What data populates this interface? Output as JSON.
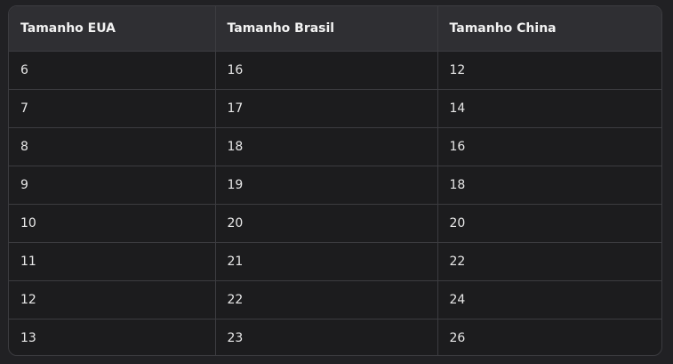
{
  "table": {
    "header": [
      "Tamanho EUA",
      "Tamanho Brasil",
      "Tamanho China"
    ],
    "rows": [
      [
        6,
        16,
        12
      ],
      [
        7,
        17,
        14
      ],
      [
        8,
        18,
        16
      ],
      [
        9,
        19,
        18
      ],
      [
        10,
        20,
        20
      ],
      [
        11,
        21,
        22
      ],
      [
        12,
        22,
        24
      ],
      [
        13,
        23,
        26
      ]
    ]
  }
}
